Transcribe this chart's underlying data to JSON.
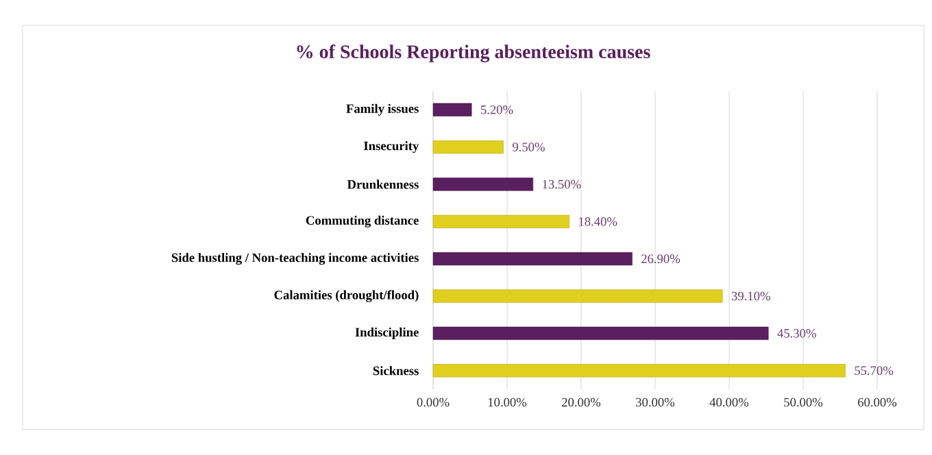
{
  "chart_data": {
    "type": "bar",
    "orientation": "horizontal",
    "title": "% of Schools Reporting absenteeism causes",
    "categories": [
      "Family issues",
      "Insecurity",
      "Drunkenness",
      "Commuting distance",
      "Side hustling / Non-teaching income activities",
      "Calamities (drought/flood)",
      "Indiscipline",
      "Sickness"
    ],
    "values": [
      5.2,
      9.5,
      13.5,
      18.4,
      26.9,
      39.1,
      45.3,
      55.7
    ],
    "value_labels": [
      "5.20%",
      "9.50%",
      "13.50%",
      "18.40%",
      "26.90%",
      "39.10%",
      "45.30%",
      "55.70%"
    ],
    "colors": [
      "#5a1f5e",
      "#e0cf1e",
      "#5a1f5e",
      "#e0cf1e",
      "#5a1f5e",
      "#e0cf1e",
      "#5a1f5e",
      "#e0cf1e"
    ],
    "xlim": [
      0,
      60
    ],
    "xticks": [
      {
        "value": 0,
        "label": "0.00%"
      },
      {
        "value": 10,
        "label": "10.00%"
      },
      {
        "value": 20,
        "label": "20.00%"
      },
      {
        "value": 30,
        "label": "30.00%"
      },
      {
        "value": 40,
        "label": "40.00%"
      },
      {
        "value": 50,
        "label": "50.00%"
      },
      {
        "value": 60,
        "label": "60.00%"
      }
    ],
    "grid": "x"
  }
}
